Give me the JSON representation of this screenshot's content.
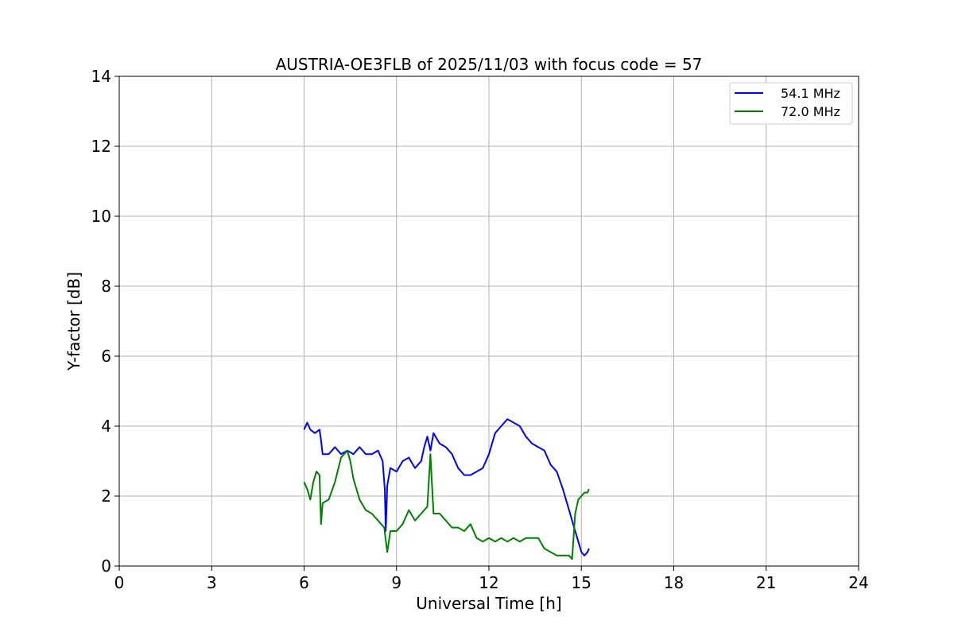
{
  "chart_data": {
    "type": "line",
    "title": "AUSTRIA-OE3FLB of 2025/11/03 with focus code = 57",
    "xlabel": "Universal Time [h]",
    "ylabel": "Y-factor [dB]",
    "xlim": [
      0,
      24
    ],
    "ylim": [
      0,
      14
    ],
    "xticks": [
      0,
      3,
      6,
      9,
      12,
      15,
      18,
      21,
      24
    ],
    "yticks": [
      0,
      2,
      4,
      6,
      8,
      10,
      12,
      14
    ],
    "grid": true,
    "legend_position": "top-right",
    "series": [
      {
        "name": "54.1 MHz",
        "color": "#0000ff",
        "x": [
          6.0,
          6.1,
          6.2,
          6.35,
          6.5,
          6.55,
          6.6,
          6.8,
          7.0,
          7.2,
          7.4,
          7.6,
          7.8,
          8.0,
          8.2,
          8.4,
          8.55,
          8.62,
          8.65,
          8.7,
          8.8,
          9.0,
          9.2,
          9.4,
          9.6,
          9.8,
          9.9,
          10.0,
          10.1,
          10.2,
          10.4,
          10.6,
          10.8,
          11.0,
          11.2,
          11.4,
          11.6,
          11.8,
          12.0,
          12.2,
          12.4,
          12.6,
          12.8,
          13.0,
          13.2,
          13.4,
          13.6,
          13.8,
          14.0,
          14.2,
          14.4,
          14.6,
          14.7,
          14.8,
          14.9,
          15.0,
          15.1,
          15.2,
          15.25
        ],
        "y": [
          3.9,
          4.1,
          3.9,
          3.8,
          3.9,
          3.6,
          3.2,
          3.2,
          3.4,
          3.2,
          3.3,
          3.2,
          3.4,
          3.2,
          3.2,
          3.3,
          3.0,
          2.2,
          1.0,
          2.3,
          2.8,
          2.7,
          3.0,
          3.1,
          2.8,
          3.0,
          3.4,
          3.7,
          3.3,
          3.8,
          3.5,
          3.4,
          3.2,
          2.8,
          2.6,
          2.6,
          2.7,
          2.8,
          3.2,
          3.8,
          4.0,
          4.2,
          4.1,
          4.0,
          3.7,
          3.5,
          3.4,
          3.3,
          2.9,
          2.7,
          2.2,
          1.6,
          1.3,
          1.0,
          0.7,
          0.4,
          0.3,
          0.4,
          0.5
        ]
      },
      {
        "name": "72.0 MHz",
        "color": "#008000",
        "x": [
          6.0,
          6.1,
          6.2,
          6.3,
          6.4,
          6.5,
          6.55,
          6.6,
          6.8,
          7.0,
          7.2,
          7.4,
          7.5,
          7.6,
          7.8,
          8.0,
          8.2,
          8.4,
          8.6,
          8.7,
          8.75,
          8.8,
          9.0,
          9.2,
          9.4,
          9.6,
          9.8,
          10.0,
          10.1,
          10.2,
          10.4,
          10.6,
          10.8,
          11.0,
          11.2,
          11.4,
          11.6,
          11.8,
          12.0,
          12.2,
          12.4,
          12.6,
          12.8,
          13.0,
          13.2,
          13.4,
          13.6,
          13.8,
          14.0,
          14.2,
          14.4,
          14.6,
          14.7,
          14.8,
          14.9,
          15.0,
          15.1,
          15.2,
          15.25
        ],
        "y": [
          2.4,
          2.2,
          1.9,
          2.4,
          2.7,
          2.6,
          1.2,
          1.8,
          1.9,
          2.4,
          3.1,
          3.3,
          3.0,
          2.5,
          1.9,
          1.6,
          1.5,
          1.3,
          1.1,
          0.4,
          0.7,
          1.0,
          1.0,
          1.2,
          1.6,
          1.3,
          1.5,
          1.7,
          3.2,
          1.5,
          1.5,
          1.3,
          1.1,
          1.1,
          1.0,
          1.2,
          0.8,
          0.7,
          0.8,
          0.7,
          0.8,
          0.7,
          0.8,
          0.7,
          0.8,
          0.8,
          0.8,
          0.5,
          0.4,
          0.3,
          0.3,
          0.3,
          0.2,
          1.5,
          1.9,
          2.0,
          2.1,
          2.1,
          2.2
        ]
      }
    ]
  }
}
